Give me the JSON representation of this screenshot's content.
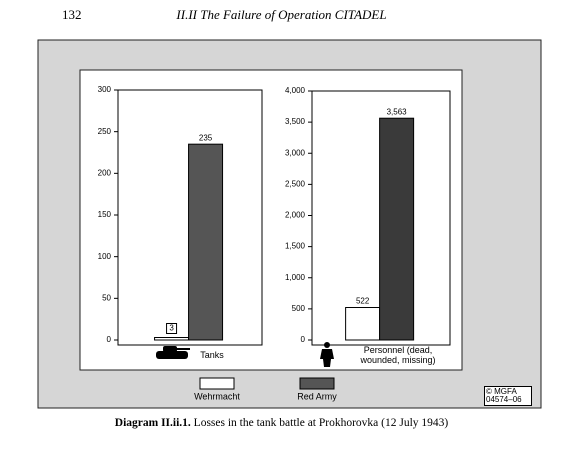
{
  "header": {
    "page_number": "132",
    "title": "II.II The Failure of Operation CITADEL"
  },
  "caption": {
    "label": "Diagram II.ii.1.",
    "text": "Losses in the tank battle at Prokhorovka (12 July 1943)"
  },
  "copyright": "© MGFA 04574–06",
  "chart_data": [
    {
      "type": "bar",
      "categories": [
        "Tanks"
      ],
      "series": [
        {
          "name": "Wehrmacht",
          "color": "#ffffff",
          "values": [
            3
          ]
        },
        {
          "name": "Red Army",
          "color": "#555555",
          "values": [
            235
          ]
        }
      ],
      "ylim": [
        0,
        300
      ],
      "yticks": [
        0,
        50,
        100,
        150,
        200,
        250,
        300
      ]
    },
    {
      "type": "bar",
      "categories": [
        "Personnel (dead, wounded, missing)"
      ],
      "series": [
        {
          "name": "Wehrmacht",
          "color": "#ffffff",
          "values": [
            522
          ]
        },
        {
          "name": "Red Army",
          "color": "#3a3a3a",
          "values": [
            3563
          ],
          "value_labels": [
            "3,563"
          ]
        }
      ],
      "ylim": [
        0,
        4000
      ],
      "yticks": [
        0,
        500,
        {
          "value": 1000,
          "label": "1,000"
        },
        {
          "value": 1500,
          "label": "1,500"
        },
        {
          "value": 2000,
          "label": "2,000"
        },
        {
          "value": 2500,
          "label": "2,500"
        },
        {
          "value": 3000,
          "label": "3,000"
        },
        {
          "value": 3500,
          "label": "3,500"
        },
        {
          "value": 4000,
          "label": "4,000"
        }
      ]
    }
  ]
}
